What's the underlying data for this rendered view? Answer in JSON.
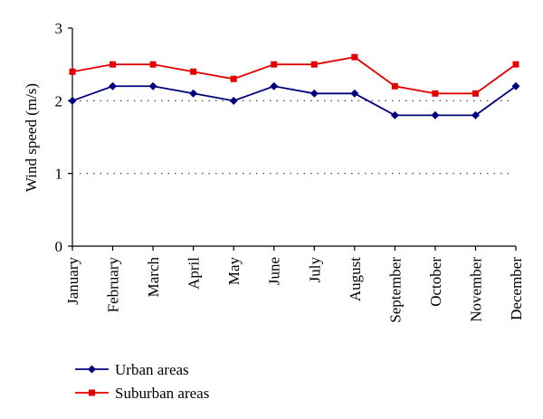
{
  "chart_data": {
    "type": "line",
    "ylabel": "Wind speed (m/s)",
    "xlabel": "",
    "ylim": [
      0,
      3
    ],
    "yticks": [
      0,
      1,
      2,
      3
    ],
    "gridlines": [
      1,
      2
    ],
    "grid_style": "dotted",
    "categories": [
      "January",
      "February",
      "March",
      "April",
      "May",
      "June",
      "July",
      "August",
      "September",
      "October",
      "November",
      "December"
    ],
    "series": [
      {
        "name": "Urban areas",
        "color": "#00007f",
        "marker": "diamond",
        "values": [
          2.0,
          2.2,
          2.2,
          2.1,
          2.0,
          2.2,
          2.1,
          2.1,
          1.8,
          1.8,
          1.8,
          2.2
        ]
      },
      {
        "name": "Suburban areas",
        "color": "#e50000",
        "marker": "square",
        "values": [
          2.4,
          2.5,
          2.5,
          2.4,
          2.3,
          2.5,
          2.5,
          2.6,
          2.2,
          2.1,
          2.1,
          2.5
        ]
      }
    ],
    "legend_position": "bottom-left"
  }
}
